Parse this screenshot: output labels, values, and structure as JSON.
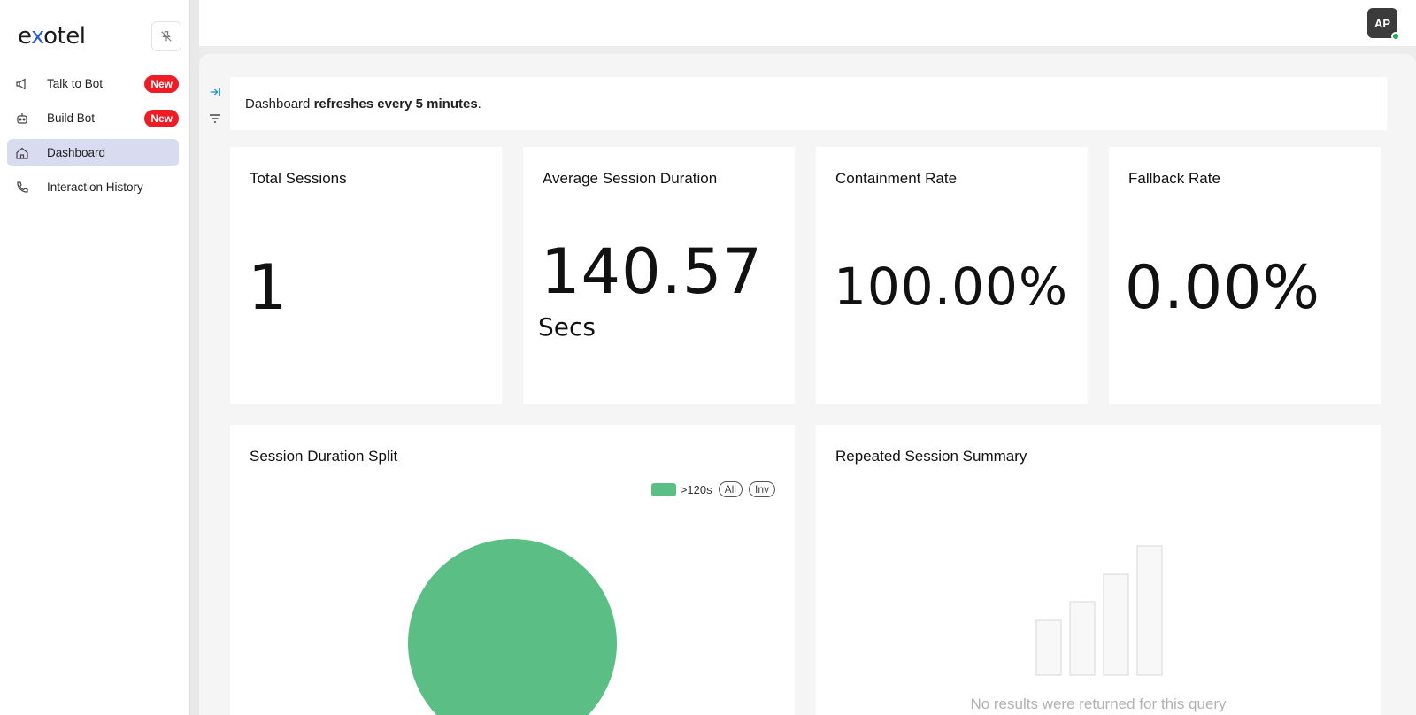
{
  "brand": {
    "logo_pre": "e",
    "logo_x": "x",
    "logo_post": "otel"
  },
  "sidebar": {
    "items": [
      {
        "label": "Talk to Bot",
        "icon": "megaphone-icon",
        "badge": "New"
      },
      {
        "label": "Build Bot",
        "icon": "robot-icon",
        "badge": "New"
      },
      {
        "label": "Dashboard",
        "icon": "home-icon",
        "active": true
      },
      {
        "label": "Interaction History",
        "icon": "phone-icon"
      }
    ]
  },
  "header": {
    "avatar_initials": "AP",
    "status_color": "#23a94f"
  },
  "notice": {
    "prefix": "Dashboard ",
    "bold": "refreshes every 5 minutes",
    "suffix": "."
  },
  "metrics": {
    "total_sessions": {
      "title": "Total Sessions",
      "value": "1"
    },
    "avg_duration": {
      "title": "Average Session Duration",
      "value": "140.57",
      "unit": "Secs"
    },
    "containment": {
      "title": "Containment Rate",
      "value": "100.00%"
    },
    "fallback": {
      "title": "Fallback Rate",
      "value": "0.00%"
    }
  },
  "session_split": {
    "title": "Session Duration Split",
    "legend_label": ">120s",
    "legend_all": "All",
    "legend_inv": "Inv"
  },
  "chart_data": {
    "type": "pie",
    "categories": [
      ">120s"
    ],
    "values": [
      1
    ],
    "colors": [
      "#5bbf85"
    ]
  },
  "repeated": {
    "title": "Repeated Session Summary",
    "empty_message": "No results were returned for this query"
  }
}
